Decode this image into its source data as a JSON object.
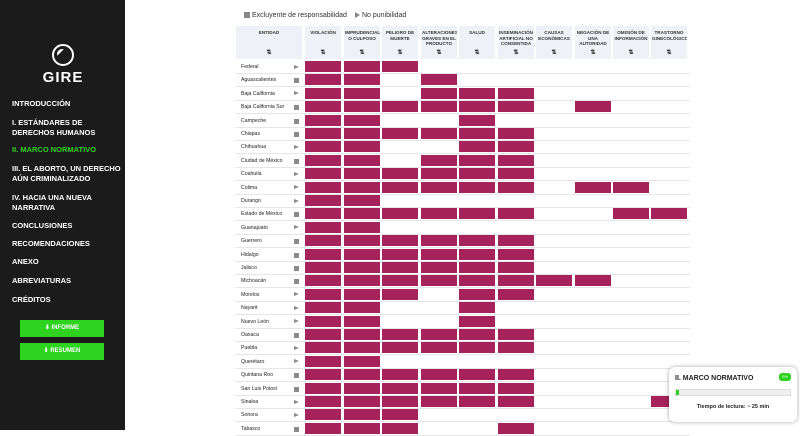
{
  "brand": {
    "name": "GIRE"
  },
  "nav": {
    "items": [
      "INTRODUCCIÓN",
      "I. ESTÁNDARES DE DERECHOS HUMANOS",
      "II. MARCO NORMATIVO",
      "III. EL ABORTO, UN DERECHO AÚN CRIMINALIZADO",
      "IV. HACIA UNA NUEVA NARRATIVA",
      "CONCLUSIONES",
      "RECOMENDACIONES",
      "ANEXO",
      "ABREVIATURAS",
      "CRÉDITOS"
    ],
    "active_index": 2
  },
  "downloads": {
    "informe": "⬇ INFORME",
    "resumen": "⬇ RESUMEN"
  },
  "legend": {
    "excluyente": "Excluyente de responsabilidad",
    "no_punibilidad": "No punibilidad"
  },
  "table": {
    "entity_header": "ENTIDAD",
    "sort_glyph": "⇅",
    "columns": [
      "VIOLACIÓN",
      "IMPRUDENCIAL O CULPOSO",
      "PELIGRO DE MUERTE",
      "ALTERACIONES GRAVES EN EL PRODUCTO",
      "SALUD",
      "INSEMINACIÓN ARTIFICIAL NO CONSENTIDA",
      "CAUSAS ECONÓMICAS",
      "NEGACIÓN DE UNA AUTORIDAD",
      "OMISIÓN DE INFORMACIÓN",
      "TRASTORNO GINECOLÓGICO"
    ],
    "rows": [
      {
        "e": "Federal",
        "t": "n",
        "c": [
          1,
          1,
          1,
          0,
          0,
          0,
          0,
          0,
          0,
          0
        ]
      },
      {
        "e": "Aguascalientes",
        "t": "e",
        "c": [
          1,
          1,
          0,
          1,
          0,
          0,
          0,
          0,
          0,
          0
        ]
      },
      {
        "e": "Baja California",
        "t": "n",
        "c": [
          1,
          1,
          0,
          1,
          1,
          1,
          0,
          0,
          0,
          0
        ]
      },
      {
        "e": "Baja California Sur",
        "t": "e",
        "c": [
          1,
          1,
          1,
          1,
          1,
          1,
          0,
          1,
          0,
          0
        ]
      },
      {
        "e": "Campeche",
        "t": "e",
        "c": [
          1,
          1,
          0,
          0,
          1,
          0,
          0,
          0,
          0,
          0
        ]
      },
      {
        "e": "Chiapas",
        "t": "e",
        "c": [
          1,
          1,
          1,
          1,
          1,
          1,
          0,
          0,
          0,
          0
        ]
      },
      {
        "e": "Chihuahua",
        "t": "n",
        "c": [
          1,
          1,
          0,
          0,
          1,
          1,
          0,
          0,
          0,
          0
        ]
      },
      {
        "e": "Ciudad de México",
        "t": "e",
        "c": [
          1,
          1,
          0,
          1,
          1,
          1,
          0,
          0,
          0,
          0
        ]
      },
      {
        "e": "Coahuila",
        "t": "n",
        "c": [
          1,
          1,
          1,
          1,
          1,
          1,
          0,
          0,
          0,
          0
        ]
      },
      {
        "e": "Colima",
        "t": "n",
        "c": [
          1,
          1,
          1,
          1,
          1,
          1,
          0,
          1,
          1,
          0
        ]
      },
      {
        "e": "Durango",
        "t": "n",
        "c": [
          1,
          1,
          0,
          0,
          0,
          0,
          0,
          0,
          0,
          0
        ]
      },
      {
        "e": "Estado de México",
        "t": "e",
        "c": [
          1,
          1,
          1,
          1,
          1,
          1,
          0,
          0,
          1,
          1
        ]
      },
      {
        "e": "Guanajuato",
        "t": "n",
        "c": [
          1,
          1,
          0,
          0,
          0,
          0,
          0,
          0,
          0,
          0
        ]
      },
      {
        "e": "Guerrero",
        "t": "e",
        "c": [
          1,
          1,
          1,
          1,
          1,
          1,
          0,
          0,
          0,
          0
        ]
      },
      {
        "e": "Hidalgo",
        "t": "e",
        "c": [
          1,
          1,
          1,
          1,
          1,
          1,
          0,
          0,
          0,
          0
        ]
      },
      {
        "e": "Jalisco",
        "t": "e",
        "c": [
          1,
          1,
          1,
          1,
          1,
          1,
          0,
          0,
          0,
          0
        ]
      },
      {
        "e": "Michoacán",
        "t": "e",
        "c": [
          1,
          1,
          1,
          1,
          1,
          1,
          1,
          1,
          0,
          0
        ]
      },
      {
        "e": "Morelos",
        "t": "n",
        "c": [
          1,
          1,
          1,
          0,
          1,
          1,
          0,
          0,
          0,
          0
        ]
      },
      {
        "e": "Nayarit",
        "t": "n",
        "c": [
          1,
          1,
          0,
          0,
          1,
          0,
          0,
          0,
          0,
          0
        ]
      },
      {
        "e": "Nuevo León",
        "t": "n",
        "c": [
          1,
          1,
          0,
          0,
          1,
          0,
          0,
          0,
          0,
          0
        ]
      },
      {
        "e": "Oaxaca",
        "t": "e",
        "c": [
          1,
          1,
          1,
          1,
          1,
          1,
          0,
          0,
          0,
          0
        ]
      },
      {
        "e": "Puebla",
        "t": "n",
        "c": [
          1,
          1,
          1,
          1,
          1,
          1,
          0,
          0,
          0,
          0
        ]
      },
      {
        "e": "Querétaro",
        "t": "n",
        "c": [
          1,
          1,
          0,
          0,
          0,
          0,
          0,
          0,
          0,
          0
        ]
      },
      {
        "e": "Quintana Roo",
        "t": "e",
        "c": [
          1,
          1,
          1,
          1,
          1,
          1,
          0,
          0,
          0,
          0
        ]
      },
      {
        "e": "San Luis Potosí",
        "t": "e",
        "c": [
          1,
          1,
          1,
          1,
          1,
          1,
          0,
          0,
          0,
          0
        ]
      },
      {
        "e": "Sinaloa",
        "t": "n",
        "c": [
          1,
          1,
          1,
          1,
          1,
          1,
          0,
          0,
          0,
          1
        ]
      },
      {
        "e": "Sonora",
        "t": "n",
        "c": [
          1,
          1,
          1,
          0,
          0,
          0,
          0,
          0,
          0,
          0
        ]
      },
      {
        "e": "Tabasco",
        "t": "e",
        "c": [
          1,
          1,
          1,
          0,
          0,
          1,
          0,
          0,
          0,
          0
        ]
      }
    ]
  },
  "reading_card": {
    "title": "II. MARCO NORMATIVO",
    "badge": "0%",
    "progress": 0.03,
    "time": "Tiempo de lectura: ~ 25 min"
  },
  "colors": {
    "cell": "#a5225a",
    "accent": "#2dd31f",
    "sidebar": "#1b1b1b"
  }
}
